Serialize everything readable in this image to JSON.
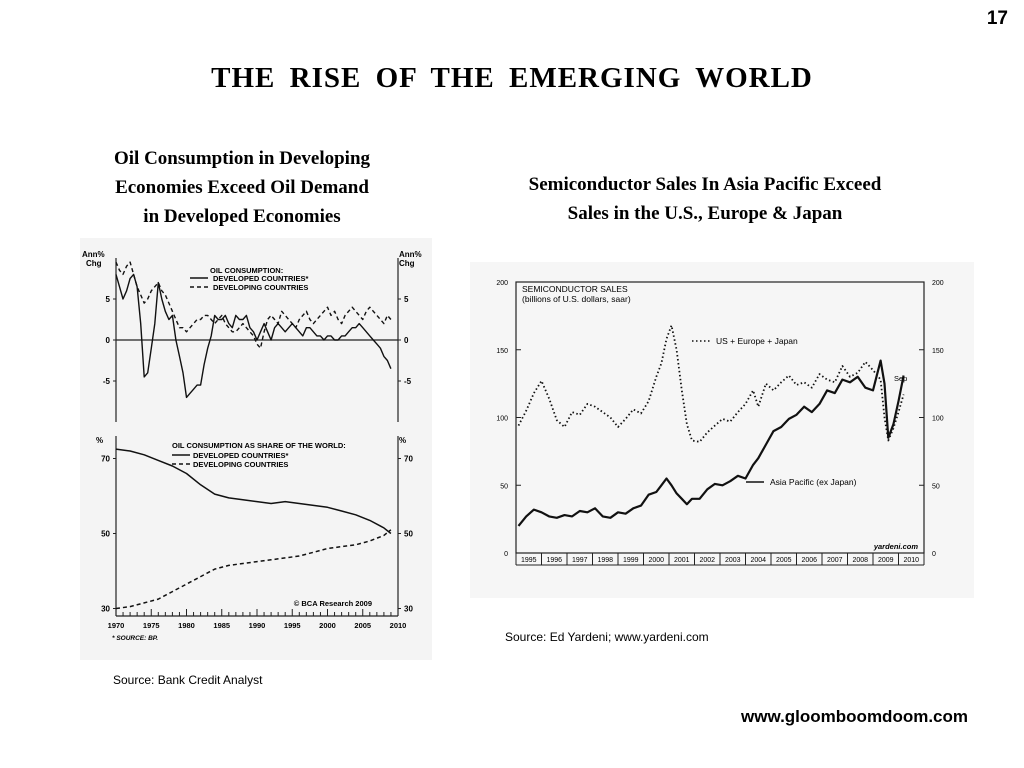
{
  "page": {
    "number": "17",
    "title": "THE  RISE  OF  THE  EMERGING  WORLD",
    "website": "www.gloomboomdoom.com"
  },
  "left_panel": {
    "heading_lines": [
      "Oil Consumption in Developing",
      "Economies Exceed Oil Demand",
      "in Developed Economies"
    ],
    "source": "Source:  Bank Credit Analyst"
  },
  "right_panel": {
    "heading_lines": [
      "Semiconductor Sales In Asia Pacific Exceed",
      "Sales in the U.S., Europe & Japan"
    ],
    "source": "Source:  Ed Yardeni; www.yardeni.com"
  },
  "chart_data": [
    {
      "type": "line",
      "title": "OIL CONSUMPTION:",
      "ylabel": "Ann% Chg",
      "ylim": [
        -10,
        10
      ],
      "yticks": [
        "5",
        "0",
        "-5"
      ],
      "grid": false,
      "legend_position": "top",
      "series": [
        {
          "name": "DEVELOPED COUNTRIES*",
          "style": "solid",
          "x": [
            1970.0,
            1970.5,
            1971.0,
            1971.5,
            1972.0,
            1972.5,
            1973.0,
            1973.5,
            1974.0,
            1974.5,
            1975.0,
            1975.5,
            1976.0,
            1976.5,
            1977.0,
            1977.5,
            1978.0,
            1978.5,
            1979.0,
            1979.5,
            1980.0,
            1980.5,
            1981.0,
            1981.5,
            1982.0,
            1982.5,
            1983.0,
            1983.5,
            1984.0,
            1984.5,
            1985.0,
            1985.5,
            1986.0,
            1986.5,
            1987.0,
            1987.5,
            1988.0,
            1988.5,
            1989.0,
            1989.5,
            1990.0,
            1990.5,
            1991.0,
            1991.5,
            1992.0,
            1992.5,
            1993.0,
            1993.5,
            1994.0,
            1994.5,
            1995.0,
            1995.5,
            1996.0,
            1996.5,
            1997.0,
            1997.5,
            1998.0,
            1998.5,
            1999.0,
            1999.5,
            2000.0,
            2000.5,
            2001.0,
            2001.5,
            2002.0,
            2002.5,
            2003.0,
            2003.5,
            2004.0,
            2004.5,
            2005.0,
            2005.5,
            2006.0,
            2006.5,
            2007.0,
            2007.5,
            2008.0,
            2008.5,
            2009.0
          ],
          "y": [
            8,
            6.5,
            5,
            6,
            7.5,
            8,
            6.5,
            2,
            -4.5,
            -4,
            -1,
            2,
            7,
            5,
            3.5,
            2.5,
            3,
            0,
            -2,
            -4,
            -7,
            -6.5,
            -6,
            -5.5,
            -5.5,
            -3,
            -1,
            0.5,
            3,
            2.5,
            2.5,
            3,
            2,
            1.5,
            3,
            2.5,
            2.5,
            3,
            1.5,
            1,
            0,
            1,
            2,
            1,
            0,
            1.5,
            2,
            1.5,
            1,
            1.5,
            2,
            1.5,
            1,
            0.5,
            1.5,
            1.5,
            1,
            0.5,
            0.5,
            0,
            0.5,
            0.5,
            0,
            0,
            0.5,
            0.5,
            1,
            1.5,
            1.5,
            2,
            1.5,
            1,
            0.5,
            0,
            -0.5,
            -1,
            -2,
            -2.5,
            -3.5
          ]
        },
        {
          "name": "DEVELOPING COUNTRIES",
          "style": "dashed",
          "x": [
            1970.0,
            1970.5,
            1971.0,
            1971.5,
            1972.0,
            1972.5,
            1973.0,
            1973.5,
            1974.0,
            1974.5,
            1975.0,
            1975.5,
            1976.0,
            1976.5,
            1977.0,
            1977.5,
            1978.0,
            1978.5,
            1979.0,
            1979.5,
            1980.0,
            1980.5,
            1981.0,
            1981.5,
            1982.0,
            1982.5,
            1983.0,
            1983.5,
            1984.0,
            1984.5,
            1985.0,
            1985.5,
            1986.0,
            1986.5,
            1987.0,
            1987.5,
            1988.0,
            1988.5,
            1989.0,
            1989.5,
            1990.0,
            1990.5,
            1991.0,
            1991.5,
            1992.0,
            1992.5,
            1993.0,
            1993.5,
            1994.0,
            1994.5,
            1995.0,
            1995.5,
            1996.0,
            1996.5,
            1997.0,
            1997.5,
            1998.0,
            1998.5,
            1999.0,
            1999.5,
            2000.0,
            2000.5,
            2001.0,
            2001.5,
            2002.0,
            2002.5,
            2003.0,
            2003.5,
            2004.0,
            2004.5,
            2005.0,
            2005.5,
            2006.0,
            2006.5,
            2007.0,
            2007.5,
            2008.0,
            2008.5,
            2009.0
          ],
          "y": [
            9.5,
            8.5,
            8,
            9,
            9.5,
            8,
            6.5,
            5.5,
            4.5,
            5,
            6,
            6.5,
            7,
            6,
            5.5,
            4.5,
            3.5,
            2.5,
            1.5,
            1.5,
            1,
            1.5,
            2,
            2.5,
            2.5,
            3,
            3,
            2.5,
            2,
            2.5,
            3,
            2,
            1.5,
            1,
            1,
            1.5,
            2,
            1.5,
            1,
            0.5,
            -0.5,
            -1,
            1,
            2.5,
            3,
            2.5,
            2,
            3.5,
            3,
            2.5,
            2,
            1.5,
            2.5,
            3,
            3.5,
            2.5,
            2,
            2.5,
            3,
            3.5,
            4,
            3,
            3.5,
            2.5,
            2,
            3,
            3.5,
            4,
            3.5,
            3,
            2.5,
            3.5,
            4,
            3.5,
            3,
            2.5,
            2,
            3,
            2.5
          ]
        }
      ]
    },
    {
      "type": "line",
      "title": "OIL CONSUMPTION AS SHARE OF THE WORLD:",
      "ylabel": "%",
      "ylim": [
        28,
        76
      ],
      "yticks": [
        "70",
        "50",
        "30"
      ],
      "xlim": [
        1970,
        2010
      ],
      "xticks": [
        "1970",
        "1975",
        "1980",
        "1985",
        "1990",
        "1995",
        "2000",
        "2005",
        "2010"
      ],
      "grid": false,
      "legend_position": "top",
      "annotations": [
        "© BCA Research 2009",
        "* SOURCE: BP."
      ],
      "series": [
        {
          "name": "DEVELOPED COUNTRIES*",
          "style": "solid",
          "x": [
            1970,
            1972,
            1974,
            1976,
            1978,
            1980,
            1982,
            1984,
            1986,
            1988,
            1990,
            1992,
            1994,
            1996,
            1998,
            2000,
            2002,
            2004,
            2006,
            2008,
            2009
          ],
          "y": [
            72.5,
            72,
            71,
            69.5,
            68,
            66,
            63,
            60.5,
            59.5,
            59,
            58.5,
            58,
            58.5,
            58,
            57.5,
            57,
            56,
            55,
            53.5,
            51.5,
            50
          ]
        },
        {
          "name": "DEVELOPING COUNTRIES",
          "style": "dashed",
          "x": [
            1970,
            1972,
            1974,
            1976,
            1978,
            1980,
            1982,
            1984,
            1986,
            1988,
            1990,
            1992,
            1994,
            1996,
            1998,
            2000,
            2002,
            2004,
            2006,
            2008,
            2009
          ],
          "y": [
            30,
            30.5,
            31.5,
            32.5,
            34.5,
            36.5,
            38.5,
            40.5,
            41.5,
            42,
            42.5,
            43,
            43.5,
            44,
            45,
            46,
            46.5,
            47,
            48,
            49.5,
            51
          ]
        }
      ]
    },
    {
      "type": "line",
      "title": "SEMICONDUCTOR SALES",
      "subtitle": "(billions of U.S. dollars, saar)",
      "ylim": [
        0,
        200
      ],
      "yticks": [
        "0",
        "50",
        "100",
        "150",
        "200"
      ],
      "xlim": [
        1994.5,
        2010.5
      ],
      "xticks": [
        "1995",
        "1996",
        "1997",
        "1998",
        "1999",
        "2000",
        "2001",
        "2002",
        "2003",
        "2004",
        "2005",
        "2006",
        "2007",
        "2008",
        "2009",
        "2010"
      ],
      "grid": false,
      "annotations": [
        "Sep",
        "yardeni.com"
      ],
      "series": [
        {
          "name": "US + Europe + Japan",
          "style": "dotted",
          "x": [
            1994.6,
            1994.9,
            1995.2,
            1995.5,
            1995.8,
            1996.1,
            1996.4,
            1996.7,
            1997.0,
            1997.3,
            1997.6,
            1997.9,
            1998.2,
            1998.5,
            1998.8,
            1999.1,
            1999.4,
            1999.7,
            2000.0,
            2000.2,
            2000.4,
            2000.6,
            2000.8,
            2001.0,
            2001.2,
            2001.4,
            2001.7,
            2002.0,
            2002.3,
            2002.6,
            2002.9,
            2003.2,
            2003.5,
            2003.8,
            2004.0,
            2004.3,
            2004.6,
            2004.9,
            2005.2,
            2005.5,
            2005.8,
            2006.1,
            2006.4,
            2006.7,
            2007.0,
            2007.3,
            2007.6,
            2007.9,
            2008.2,
            2008.5,
            2008.8,
            2008.95,
            2009.1,
            2009.3,
            2009.5,
            2009.7
          ],
          "y": [
            94,
            105,
            118,
            127,
            114,
            98,
            93,
            104,
            102,
            110,
            108,
            104,
            100,
            93,
            99,
            106,
            103,
            112,
            130,
            140,
            158,
            168,
            150,
            120,
            95,
            83,
            82,
            89,
            94,
            99,
            97,
            104,
            110,
            120,
            108,
            125,
            120,
            126,
            131,
            124,
            126,
            122,
            132,
            128,
            126,
            138,
            130,
            133,
            141,
            135,
            128,
            100,
            83,
            92,
            104,
            117
          ]
        },
        {
          "name": "Asia Pacific (ex Japan)",
          "style": "solid",
          "x": [
            1994.6,
            1994.9,
            1995.2,
            1995.5,
            1995.8,
            1996.1,
            1996.4,
            1996.7,
            1997.0,
            1997.3,
            1997.6,
            1997.9,
            1998.2,
            1998.5,
            1998.8,
            1999.1,
            1999.4,
            1999.7,
            2000.0,
            2000.2,
            2000.4,
            2000.6,
            2000.8,
            2001.0,
            2001.2,
            2001.4,
            2001.7,
            2002.0,
            2002.3,
            2002.6,
            2002.9,
            2003.2,
            2003.5,
            2003.8,
            2004.0,
            2004.3,
            2004.6,
            2004.9,
            2005.2,
            2005.5,
            2005.8,
            2006.1,
            2006.4,
            2006.7,
            2007.0,
            2007.3,
            2007.6,
            2007.9,
            2008.2,
            2008.5,
            2008.8,
            2008.95,
            2009.1,
            2009.3,
            2009.5,
            2009.7
          ],
          "y": [
            20,
            27,
            32,
            30,
            27,
            26,
            28,
            27,
            31,
            30,
            33,
            27,
            26,
            30,
            29,
            33,
            35,
            43,
            45,
            50,
            55,
            50,
            44,
            40,
            36,
            40,
            40,
            47,
            51,
            50,
            53,
            57,
            55,
            65,
            70,
            80,
            90,
            93,
            99,
            102,
            108,
            104,
            110,
            120,
            118,
            128,
            126,
            130,
            122,
            120,
            142,
            125,
            85,
            95,
            112,
            131
          ]
        }
      ]
    }
  ]
}
